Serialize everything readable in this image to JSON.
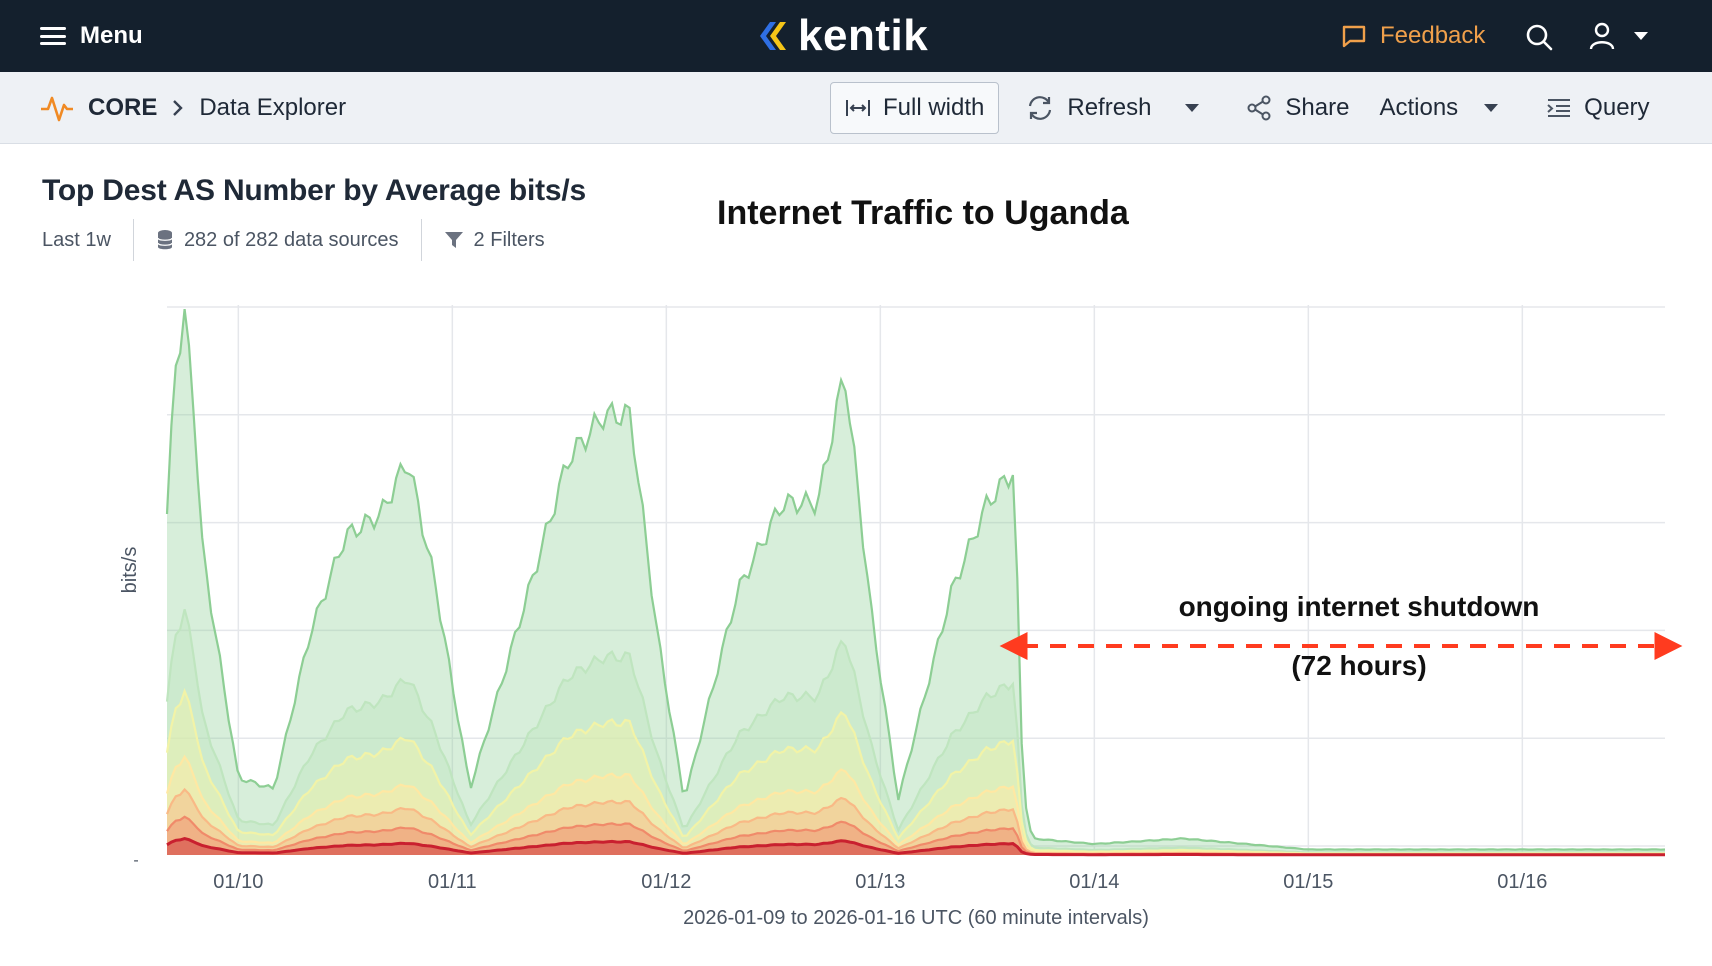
{
  "header": {
    "menu_label": "Menu",
    "brand": "kentik",
    "feedback_label": "Feedback"
  },
  "breadcrumb": {
    "section": "CORE",
    "page": "Data Explorer"
  },
  "toolbar": {
    "full_width_label": "Full width",
    "refresh_label": "Refresh",
    "share_label": "Share",
    "actions_label": "Actions",
    "query_label": "Query"
  },
  "panel": {
    "title": "Top Dest AS Number by Average bits/s",
    "time_range": "Last 1w",
    "data_sources": "282 of 282 data sources",
    "filters": "2 Filters"
  },
  "annotation": {
    "title": "Internet Traffic to Uganda",
    "shutdown_line1": "ongoing internet shutdown",
    "shutdown_line2": "(72 hours)"
  },
  "colors": {
    "accent_orange": "#f0a04b",
    "nav_dark": "#14202d",
    "annotation_red": "#ff3b1f"
  },
  "chart_data": {
    "type": "area",
    "stacked": true,
    "ylabel": "bits/s",
    "xlabel": "2026-01-09 to 2026-01-16 UTC (60 minute intervals)",
    "x_ticks": [
      "01/10",
      "01/11",
      "01/12",
      "01/13",
      "01/14",
      "01/15",
      "01/16"
    ],
    "y_tick_labels": [
      "-"
    ],
    "x_range": [
      "2026-01-09T16:00",
      "2026-01-16T16:00"
    ],
    "ylim": [
      0,
      100
    ],
    "grid": true,
    "total_profile": [
      [
        "2026-01-09T16:00",
        62
      ],
      [
        "2026-01-09T17:00",
        90
      ],
      [
        "2026-01-09T18:00",
        98
      ],
      [
        "2026-01-09T19:00",
        82
      ],
      [
        "2026-01-09T20:00",
        55
      ],
      [
        "2026-01-10T00:00",
        14
      ],
      [
        "2026-01-10T04:00",
        12
      ],
      [
        "2026-01-10T08:00",
        40
      ],
      [
        "2026-01-10T12:00",
        58
      ],
      [
        "2026-01-10T16:00",
        62
      ],
      [
        "2026-01-10T19:00",
        72
      ],
      [
        "2026-01-10T22:00",
        50
      ],
      [
        "2026-01-11T02:00",
        12
      ],
      [
        "2026-01-11T08:00",
        45
      ],
      [
        "2026-01-11T13:00",
        72
      ],
      [
        "2026-01-11T17:00",
        80
      ],
      [
        "2026-01-11T20:00",
        80
      ],
      [
        "2026-01-11T23:00",
        40
      ],
      [
        "2026-01-12T02:00",
        10
      ],
      [
        "2026-01-12T08:00",
        48
      ],
      [
        "2026-01-12T13:00",
        64
      ],
      [
        "2026-01-12T17:00",
        64
      ],
      [
        "2026-01-12T20:00",
        88
      ],
      [
        "2026-01-12T23:00",
        44
      ],
      [
        "2026-01-13T02:00",
        10
      ],
      [
        "2026-01-13T08:00",
        48
      ],
      [
        "2026-01-13T12:00",
        64
      ],
      [
        "2026-01-13T15:00",
        70
      ],
      [
        "2026-01-13T16:00",
        12
      ],
      [
        "2026-01-13T17:00",
        3
      ],
      [
        "2026-01-14T00:00",
        2
      ],
      [
        "2026-01-14T10:00",
        3
      ],
      [
        "2026-01-15T00:00",
        1
      ],
      [
        "2026-01-16T16:00",
        1
      ]
    ],
    "layers_share": [
      0.55,
      0.15,
      0.12,
      0.06,
      0.05,
      0.04,
      0.03
    ],
    "layer_colors": [
      "#8dce94",
      "#bfe5bf",
      "#f2f3a7",
      "#ffe8a3",
      "#f9b986",
      "#f08a6a",
      "#c9202f"
    ],
    "annotations": [
      {
        "text": "ongoing internet shutdown",
        "x_from": "2026-01-13T16:00",
        "x_to": "2026-01-16T16:00"
      },
      {
        "text": "(72 hours)"
      }
    ]
  }
}
